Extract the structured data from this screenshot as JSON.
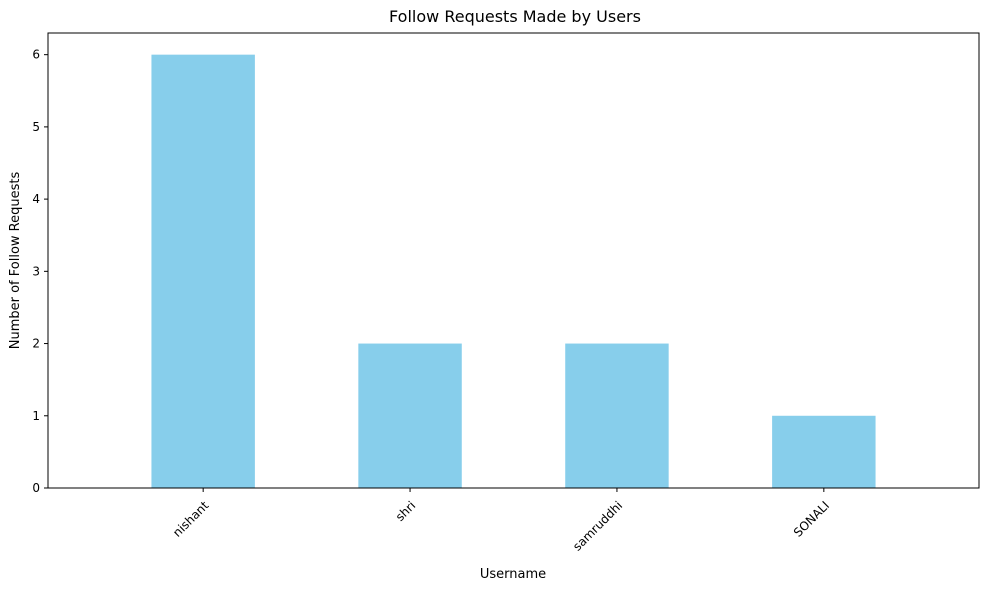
{
  "chart_data": {
    "type": "bar",
    "title": "Follow Requests Made by Users",
    "xlabel": "Username",
    "ylabel": "Number of Follow Requests",
    "categories": [
      "nishant",
      "shri",
      "samruddhi",
      "SONALI"
    ],
    "values": [
      6,
      2,
      2,
      1
    ],
    "ylim": [
      0,
      6.3
    ],
    "yticks": [
      0,
      1,
      2,
      3,
      4,
      5,
      6
    ],
    "bar_color": "#87ceeb",
    "grid": false,
    "legend": "none"
  }
}
